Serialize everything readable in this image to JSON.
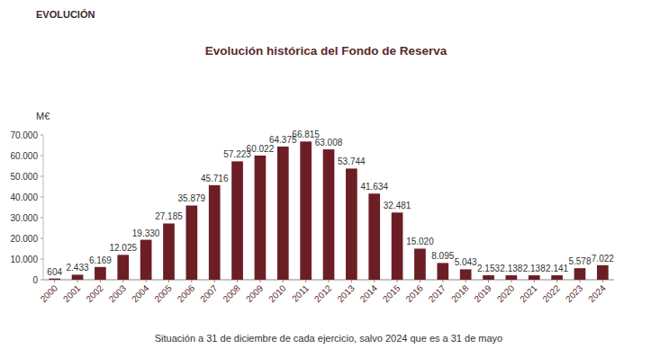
{
  "chart_data": {
    "type": "bar",
    "header": "EVOLUCIÓN",
    "title": "Evolución histórica del Fondo de Reserva",
    "y_label": "M€",
    "footnote": "Situación a 31 de diciembre de cada ejercicio, salvo 2024 que es a 31 de mayo",
    "categories": [
      "2000",
      "2001",
      "2002",
      "2003",
      "2004",
      "2005",
      "2006",
      "2007",
      "2008",
      "2009",
      "2010",
      "2011",
      "2012",
      "2013",
      "2014",
      "2015",
      "2016",
      "2017",
      "2018",
      "2019",
      "2020",
      "2021",
      "2022",
      "2023",
      "2024"
    ],
    "values": [
      604,
      2433,
      6169,
      12025,
      19330,
      27185,
      35879,
      45716,
      57223,
      60022,
      64375,
      66815,
      63008,
      53744,
      41634,
      32481,
      15020,
      8095,
      5043,
      2153,
      2138,
      2138,
      2141,
      5578,
      7022
    ],
    "value_labels": [
      "604",
      "2.433",
      "6.169",
      "12.025",
      "19.330",
      "27.185",
      "35.879",
      "45.716",
      "57.223",
      "60.022",
      "64.375",
      "66.815",
      "63.008",
      "53.744",
      "41.634",
      "32.481",
      "15.020",
      "8.095",
      "5.043",
      "2.153",
      "2.138",
      "2.138",
      "2.141",
      "5.578",
      "7.022"
    ],
    "color": "#6b1f24",
    "ylim": [
      0,
      70000
    ],
    "yticks": [
      0,
      {
        "value": 10000,
        "label": "10.000"
      },
      {
        "value": 20000,
        "label": "20.000"
      },
      {
        "value": 30000,
        "label": "30.000"
      },
      {
        "value": 40000,
        "label": "40.000"
      },
      {
        "value": 50000,
        "label": "50.000"
      },
      {
        "value": 60000,
        "label": "60.000"
      },
      {
        "value": 70000,
        "label": "70.000"
      }
    ],
    "grid": false,
    "data_labels": true
  }
}
